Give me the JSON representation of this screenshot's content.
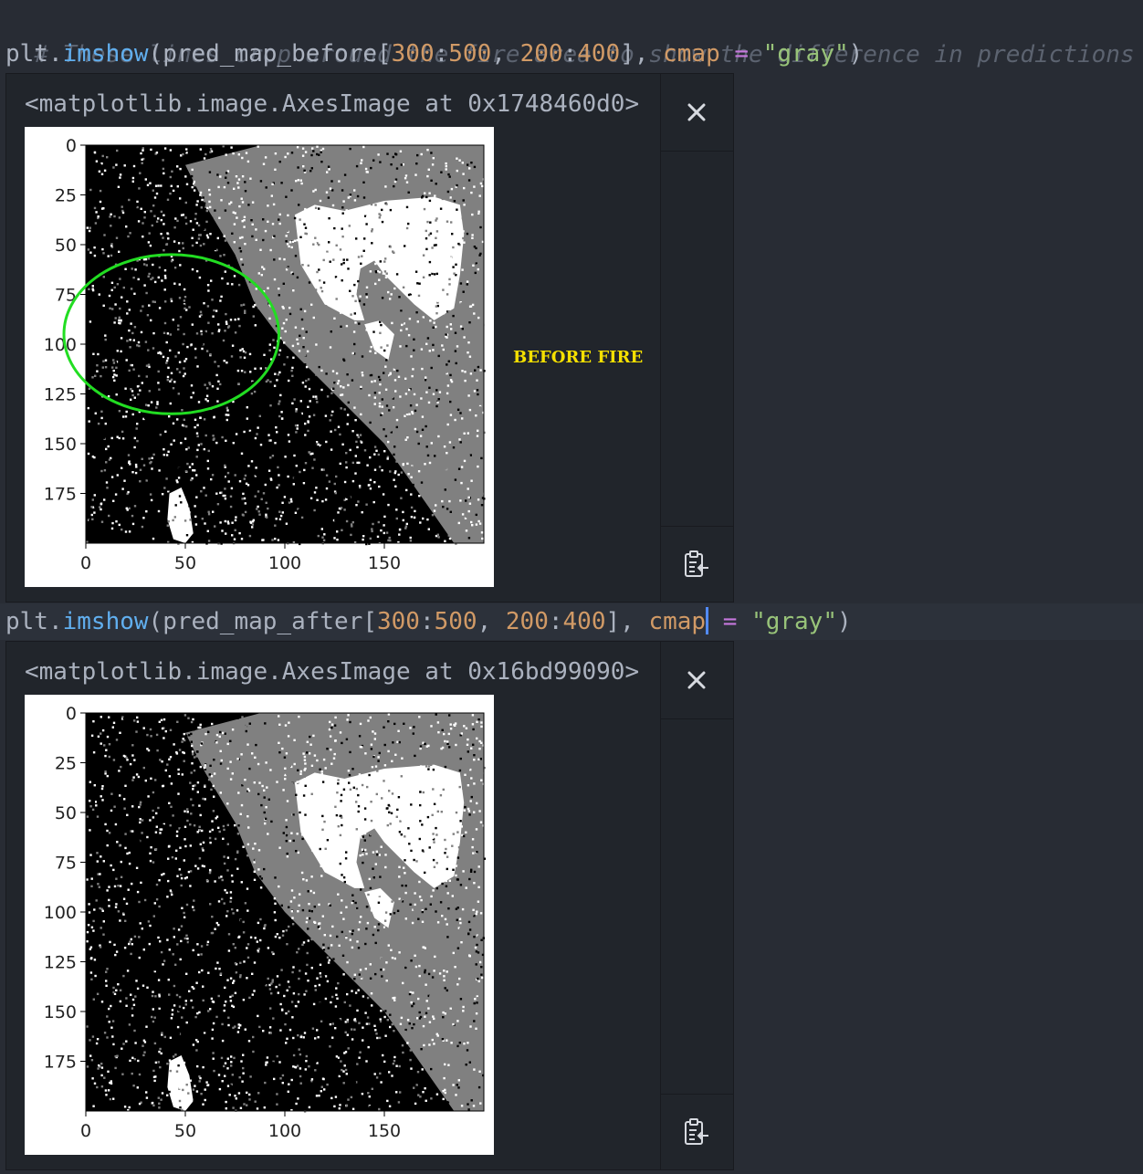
{
  "code": {
    "comment": "# These lines crop around the fire area to show the difference in predictions",
    "cell1": {
      "prefix": "plt.",
      "func": "imshow",
      "open": "(pred_map_before[",
      "n1": "300",
      "colon1": ":",
      "n2": "500",
      "comma1": ", ",
      "n3": "200",
      "colon2": ":",
      "n4": "400",
      "close": "], ",
      "kw": "cmap",
      "eq": " = ",
      "str": "\"gray\"",
      "end": ")"
    },
    "cell2": {
      "prefix": "plt.",
      "func": "imshow",
      "open": "(pred_map_after[",
      "n1": "300",
      "colon1": ":",
      "n2": "500",
      "comma1": ", ",
      "n3": "200",
      "colon2": ":",
      "n4": "400",
      "close": "], ",
      "kw": "cmap",
      "eq": " = ",
      "str": "\"gray\"",
      "end": ")"
    }
  },
  "outputs": [
    {
      "repr": "<matplotlib.image.AxesImage at 0x1748460d0>",
      "caption": "BEFORE FIRE",
      "highlight": "green ellipse",
      "close_icon": "close-icon",
      "copy_icon": "clipboard-icon"
    },
    {
      "repr": "<matplotlib.image.AxesImage at 0x16bd99090>",
      "caption": "",
      "close_icon": "close-icon",
      "copy_icon": "clipboard-icon"
    }
  ],
  "chart_data": [
    {
      "type": "heatmap",
      "title": "",
      "xlabel": "",
      "ylabel": "",
      "xlim": [
        0,
        200
      ],
      "ylim": [
        200,
        0
      ],
      "x_ticks": [
        "0",
        "50",
        "100",
        "150"
      ],
      "y_ticks": [
        "0",
        "25",
        "50",
        "75",
        "100",
        "125",
        "150",
        "175"
      ],
      "colormap": "gray",
      "grid": false
    },
    {
      "type": "heatmap",
      "title": "",
      "xlabel": "",
      "ylabel": "",
      "xlim": [
        0,
        200
      ],
      "ylim": [
        200,
        0
      ],
      "x_ticks": [
        "0",
        "50",
        "100",
        "150"
      ],
      "y_ticks": [
        "0",
        "25",
        "50",
        "75",
        "100",
        "125",
        "150",
        "175"
      ],
      "colormap": "gray",
      "grid": false
    }
  ],
  "colors": {
    "editor_bg": "#282c34",
    "ellipse": "#22dd22",
    "caption": "#f5e000"
  }
}
